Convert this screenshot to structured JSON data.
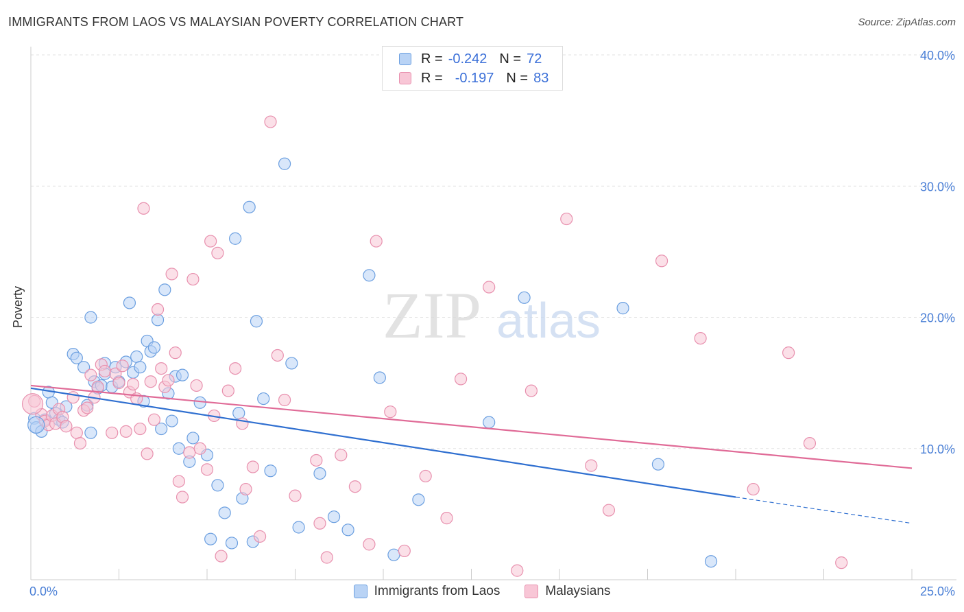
{
  "title": "IMMIGRANTS FROM LAOS VS MALAYSIAN POVERTY CORRELATION CHART",
  "source": "Source: ZipAtlas.com",
  "watermark": {
    "zip": "ZIP",
    "atlas": "atlas"
  },
  "legend": {
    "r_label": "R =",
    "n_label": "N =",
    "series": [
      {
        "name": "Immigrants from Laos",
        "r": "-0.242",
        "n": "72",
        "fill": "#b9d3f5",
        "stroke": "#6b9fe0"
      },
      {
        "name": "Malaysians",
        "r": "-0.197",
        "n": "83",
        "fill": "#f8c6d6",
        "stroke": "#e890ae"
      }
    ]
  },
  "chart_data": {
    "type": "scatter",
    "title": "IMMIGRANTS FROM LAOS VS MALAYSIAN POVERTY CORRELATION CHART",
    "xlabel": "",
    "ylabel": "Poverty",
    "xlim": [
      0,
      25
    ],
    "ylim": [
      0,
      40
    ],
    "x_tick_labels": [
      "0.0%",
      "25.0%"
    ],
    "y_ticks": [
      10,
      20,
      30,
      40
    ],
    "y_tick_labels": [
      "10.0%",
      "20.0%",
      "30.0%",
      "40.0%"
    ],
    "grid": true,
    "series": [
      {
        "name": "Immigrants from Laos",
        "color": "#6b9fe0",
        "fill": "#b9d3f5",
        "trend": {
          "x0": 0,
          "y0": 14.6,
          "x1": 20,
          "y1": 6.3,
          "dash_to_x": 25,
          "dash_to_y": 4.3,
          "color": "#2f6fd0"
        },
        "points": [
          [
            0.1,
            12.3
          ],
          [
            0.15,
            11.6
          ],
          [
            0.3,
            11.3
          ],
          [
            0.4,
            12.2
          ],
          [
            0.5,
            14.3
          ],
          [
            0.6,
            13.5
          ],
          [
            0.7,
            12.7
          ],
          [
            0.8,
            12.2
          ],
          [
            0.9,
            12.0
          ],
          [
            1.0,
            13.2
          ],
          [
            1.2,
            17.2
          ],
          [
            1.3,
            16.9
          ],
          [
            1.5,
            16.2
          ],
          [
            1.6,
            13.3
          ],
          [
            1.7,
            11.2
          ],
          [
            1.7,
            20.0
          ],
          [
            1.8,
            15.1
          ],
          [
            1.9,
            14.6
          ],
          [
            2.0,
            14.8
          ],
          [
            2.1,
            15.7
          ],
          [
            2.1,
            16.5
          ],
          [
            2.3,
            14.7
          ],
          [
            2.4,
            16.2
          ],
          [
            2.5,
            15.1
          ],
          [
            2.7,
            16.6
          ],
          [
            2.8,
            21.1
          ],
          [
            2.9,
            15.8
          ],
          [
            3.0,
            17.0
          ],
          [
            3.1,
            16.2
          ],
          [
            3.2,
            13.6
          ],
          [
            3.3,
            18.2
          ],
          [
            3.4,
            17.4
          ],
          [
            3.5,
            17.7
          ],
          [
            3.6,
            19.8
          ],
          [
            3.7,
            11.5
          ],
          [
            3.8,
            22.1
          ],
          [
            3.9,
            14.2
          ],
          [
            4.0,
            12.1
          ],
          [
            4.1,
            15.5
          ],
          [
            4.2,
            10.0
          ],
          [
            4.3,
            15.6
          ],
          [
            4.5,
            9.0
          ],
          [
            4.6,
            10.8
          ],
          [
            4.8,
            13.5
          ],
          [
            5.0,
            9.5
          ],
          [
            5.1,
            3.1
          ],
          [
            5.3,
            7.2
          ],
          [
            5.5,
            5.1
          ],
          [
            5.7,
            2.8
          ],
          [
            5.8,
            26.0
          ],
          [
            5.9,
            12.7
          ],
          [
            6.0,
            6.2
          ],
          [
            6.2,
            28.4
          ],
          [
            6.3,
            2.9
          ],
          [
            6.4,
            19.7
          ],
          [
            6.6,
            13.8
          ],
          [
            6.8,
            8.3
          ],
          [
            7.2,
            31.7
          ],
          [
            7.4,
            16.5
          ],
          [
            7.6,
            4.0
          ],
          [
            8.2,
            8.1
          ],
          [
            8.6,
            4.8
          ],
          [
            9.0,
            3.8
          ],
          [
            9.6,
            23.2
          ],
          [
            9.9,
            15.4
          ],
          [
            10.3,
            1.9
          ],
          [
            11.0,
            6.1
          ],
          [
            13.0,
            12.0
          ],
          [
            14.0,
            21.5
          ],
          [
            16.8,
            20.7
          ],
          [
            17.8,
            8.8
          ],
          [
            19.3,
            1.4
          ]
        ]
      },
      {
        "name": "Malaysians",
        "color": "#e890ae",
        "fill": "#f8c6d6",
        "trend": {
          "x0": 0,
          "y0": 14.8,
          "x1": 25,
          "y1": 8.5,
          "color": "#e06b97"
        },
        "points": [
          [
            0.1,
            13.6
          ],
          [
            0.3,
            12.6
          ],
          [
            0.4,
            12.1
          ],
          [
            0.5,
            11.8
          ],
          [
            0.6,
            12.5
          ],
          [
            0.7,
            11.9
          ],
          [
            0.8,
            13.0
          ],
          [
            0.9,
            12.4
          ],
          [
            1.0,
            11.7
          ],
          [
            1.2,
            13.9
          ],
          [
            1.3,
            11.2
          ],
          [
            1.4,
            10.4
          ],
          [
            1.5,
            12.9
          ],
          [
            1.6,
            13.1
          ],
          [
            1.7,
            15.6
          ],
          [
            1.8,
            13.9
          ],
          [
            1.9,
            14.7
          ],
          [
            2.0,
            16.4
          ],
          [
            2.1,
            15.9
          ],
          [
            2.3,
            11.2
          ],
          [
            2.4,
            15.7
          ],
          [
            2.5,
            15.0
          ],
          [
            2.6,
            16.3
          ],
          [
            2.7,
            11.3
          ],
          [
            2.8,
            14.3
          ],
          [
            2.9,
            14.9
          ],
          [
            3.0,
            13.8
          ],
          [
            3.1,
            11.5
          ],
          [
            3.2,
            28.3
          ],
          [
            3.3,
            9.6
          ],
          [
            3.4,
            15.1
          ],
          [
            3.5,
            12.2
          ],
          [
            3.6,
            20.6
          ],
          [
            3.7,
            16.1
          ],
          [
            3.8,
            14.7
          ],
          [
            3.9,
            15.2
          ],
          [
            4.0,
            23.3
          ],
          [
            4.1,
            17.3
          ],
          [
            4.2,
            7.5
          ],
          [
            4.3,
            6.3
          ],
          [
            4.5,
            9.7
          ],
          [
            4.6,
            22.9
          ],
          [
            4.7,
            14.8
          ],
          [
            4.8,
            10.0
          ],
          [
            5.0,
            8.4
          ],
          [
            5.1,
            25.8
          ],
          [
            5.2,
            12.5
          ],
          [
            5.3,
            24.9
          ],
          [
            5.4,
            1.8
          ],
          [
            5.6,
            14.4
          ],
          [
            5.8,
            16.1
          ],
          [
            6.0,
            11.9
          ],
          [
            6.1,
            6.9
          ],
          [
            6.3,
            8.6
          ],
          [
            6.5,
            3.3
          ],
          [
            6.8,
            34.9
          ],
          [
            7.0,
            17.1
          ],
          [
            7.2,
            13.7
          ],
          [
            7.5,
            6.4
          ],
          [
            8.1,
            9.1
          ],
          [
            8.2,
            4.3
          ],
          [
            8.4,
            1.7
          ],
          [
            8.8,
            9.5
          ],
          [
            9.2,
            7.1
          ],
          [
            9.6,
            2.7
          ],
          [
            9.8,
            25.8
          ],
          [
            10.2,
            12.8
          ],
          [
            10.6,
            2.2
          ],
          [
            11.2,
            7.9
          ],
          [
            11.8,
            4.7
          ],
          [
            12.2,
            15.3
          ],
          [
            13.0,
            22.3
          ],
          [
            13.8,
            0.7
          ],
          [
            14.2,
            14.4
          ],
          [
            15.2,
            27.5
          ],
          [
            15.9,
            8.7
          ],
          [
            16.4,
            5.3
          ],
          [
            17.9,
            24.3
          ],
          [
            19.0,
            18.4
          ],
          [
            20.5,
            6.9
          ],
          [
            21.5,
            17.3
          ],
          [
            22.1,
            10.4
          ],
          [
            23.0,
            1.3
          ]
        ]
      }
    ]
  }
}
